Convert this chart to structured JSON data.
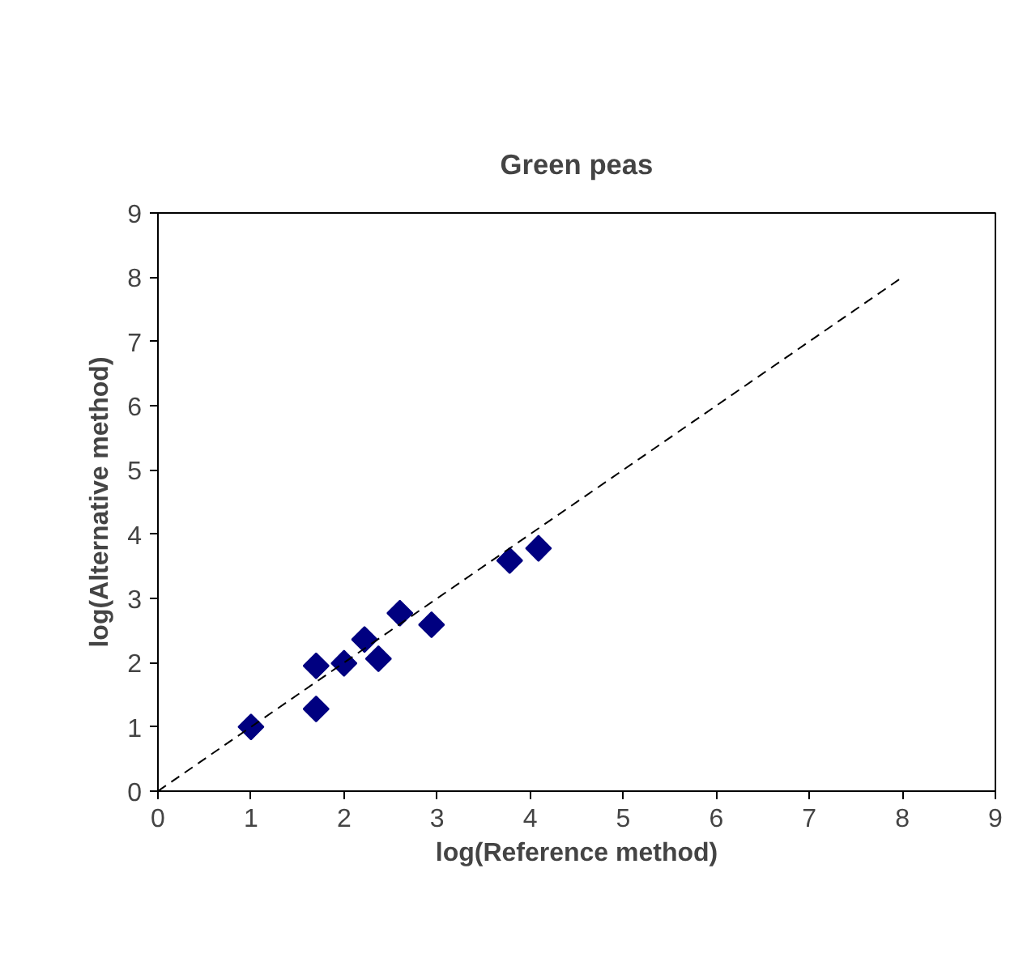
{
  "chart_data": {
    "type": "scatter",
    "title": "Green peas",
    "xlabel": "log(Reference method)",
    "ylabel": "log(Alternative method)",
    "xlim": [
      0,
      9
    ],
    "ylim": [
      0,
      9
    ],
    "xticks": [
      0,
      1,
      2,
      3,
      4,
      5,
      6,
      7,
      8,
      9
    ],
    "yticks": [
      0,
      1,
      2,
      3,
      4,
      5,
      6,
      7,
      8,
      9
    ],
    "grid": false,
    "marker": "diamond",
    "series": [
      {
        "color": "#000080",
        "x": [
          1.0,
          1.7,
          1.7,
          2.0,
          2.22,
          2.37,
          2.6,
          2.94,
          3.78,
          4.09
        ],
        "values": [
          1.0,
          1.95,
          1.28,
          1.99,
          2.36,
          2.06,
          2.77,
          2.59,
          3.59,
          3.78
        ]
      },
      {
        "type": "line",
        "color": "#000000",
        "line_style": "dashed",
        "marker": "none",
        "x": [
          0,
          8
        ],
        "values": [
          0,
          8
        ]
      }
    ]
  }
}
